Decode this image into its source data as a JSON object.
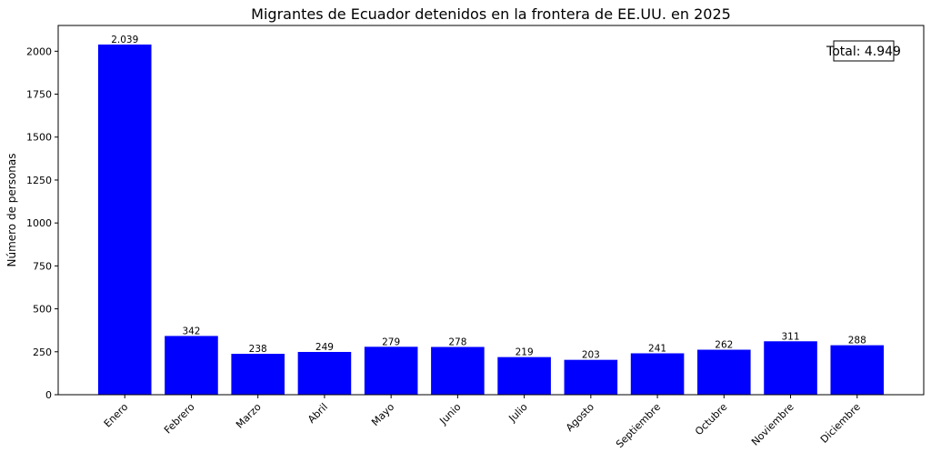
{
  "chart_data": {
    "type": "bar",
    "title": "Migrantes de Ecuador detenidos en la frontera de EE.UU. en 2025",
    "xlabel": "",
    "ylabel": "Número de personas",
    "categories": [
      "Enero",
      "Febrero",
      "Marzo",
      "Abril",
      "Mayo",
      "Junio",
      "Julio",
      "Agosto",
      "Septiembre",
      "Octubre",
      "Noviembre",
      "Diciembre"
    ],
    "values": [
      2039,
      342,
      238,
      249,
      279,
      278,
      219,
      203,
      241,
      262,
      311,
      288
    ],
    "value_labels": [
      "2.039",
      "342",
      "238",
      "249",
      "279",
      "278",
      "219",
      "203",
      "241",
      "262",
      "311",
      "288"
    ],
    "ylim": [
      0,
      2150
    ],
    "yticks": [
      0,
      250,
      500,
      750,
      1000,
      1250,
      1500,
      1750,
      2000
    ],
    "annotation": "Total: 4.949",
    "bar_color": "#0000ff",
    "grid": false
  }
}
